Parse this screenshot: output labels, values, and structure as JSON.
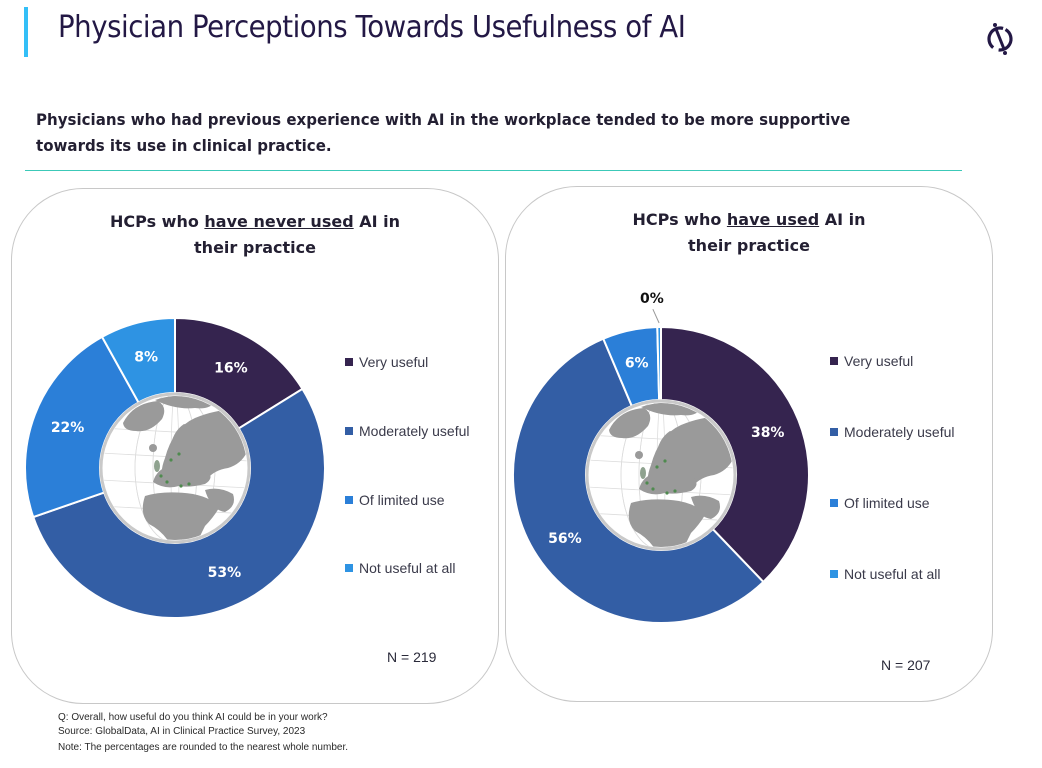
{
  "header": {
    "title": "Physician Perceptions Towards Usefulness of AI",
    "subtitle": "Physicians who had previous experience with AI in the workplace tended to be more supportive towards its use in clinical practice.",
    "logo_icon": "globaldata-logo-icon"
  },
  "colors": {
    "accent_bar": "#33bff7",
    "divider": "#3cc9b8",
    "very_useful": "#35244f",
    "moderately_useful": "#335ea5",
    "of_limited_use": "#2b7fd8",
    "not_useful_at_all": "#2e93e3"
  },
  "chart_data": [
    {
      "type": "pie",
      "variant": "donut",
      "title_parts": [
        "HCPs who ",
        "have never used",
        " AI in their practice"
      ],
      "title": "HCPs who have never used AI in their practice",
      "categories": [
        "Very useful",
        "Moderately useful",
        "Of limited use",
        "Not useful at all"
      ],
      "values": [
        16,
        53,
        22,
        8
      ],
      "labels": [
        "16%",
        "53%",
        "22%",
        "8%"
      ],
      "unit": "%",
      "n_label": "N = 219",
      "legend_position": "right"
    },
    {
      "type": "pie",
      "variant": "donut",
      "title_parts": [
        "HCPs who ",
        "have used",
        " AI in their practice"
      ],
      "title": "HCPs who have used AI in their practice",
      "categories": [
        "Very useful",
        "Moderately useful",
        "Of limited use",
        "Not useful at all"
      ],
      "values": [
        38,
        56,
        6,
        0.4
      ],
      "labels": [
        "38%",
        "56%",
        "6%",
        "0%"
      ],
      "unit": "%",
      "n_label": "N = 207",
      "legend_position": "right"
    }
  ],
  "footer": {
    "question": "Q: Overall, how useful do you think AI could be in your work?",
    "source": "Source: GlobalData, AI in Clinical Practice Survey, 2023",
    "note": "Note: The percentages are rounded to the nearest whole number."
  }
}
